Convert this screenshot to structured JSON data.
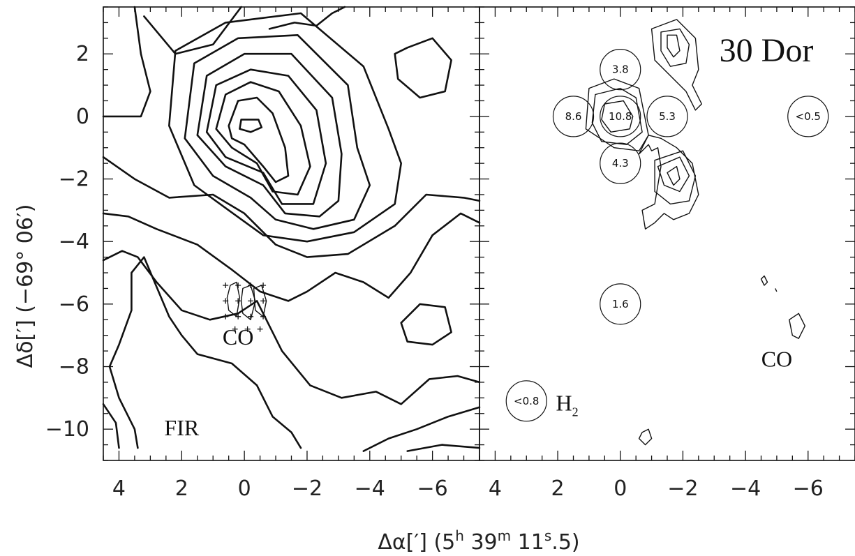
{
  "chart_data": {
    "type": "contour",
    "object_label": "30 Dor",
    "xlabel_parts": {
      "prefix": "Δα[′] (5",
      "h": "h",
      "mid1": " 39",
      "m": "m",
      "mid2": " 11",
      "s": "s",
      "suffix": ".5)"
    },
    "ylabel": "Δδ[′] (−69° 06′)",
    "xlim": [
      4.5,
      -7.5
    ],
    "ylim": [
      -11,
      3.5
    ],
    "x_ticks": [
      4,
      2,
      0,
      -2,
      -4,
      -6
    ],
    "x_tick_labels": [
      "4",
      "2",
      "0",
      "−2",
      "−4",
      "−6"
    ],
    "y_ticks": [
      2,
      0,
      -2,
      -4,
      -6,
      -8,
      -10
    ],
    "y_tick_labels": [
      "2",
      "0",
      "−2",
      "−4",
      "−6",
      "−8",
      "−10"
    ],
    "panels": [
      {
        "name": "left",
        "labels": [
          {
            "text": "FIR",
            "x": 2.0,
            "y": -10.2
          },
          {
            "text": "CO",
            "x": 0.2,
            "y": -7.3
          }
        ]
      },
      {
        "name": "right",
        "labels": [
          {
            "text": "H",
            "sub": "2",
            "x": 1.7,
            "y": -9.4
          },
          {
            "text": "CO",
            "x": -5.0,
            "y": -8.0
          }
        ],
        "pointings": [
          {
            "label": "3.8",
            "x": 0.0,
            "y": 1.5
          },
          {
            "label": "8.6",
            "x": 1.5,
            "y": 0.0
          },
          {
            "label": "10.8",
            "x": 0.0,
            "y": 0.0
          },
          {
            "label": "5.3",
            "x": -1.5,
            "y": 0.0
          },
          {
            "label": "4.3",
            "x": 0.0,
            "y": -1.5
          },
          {
            "label": "<0.5",
            "x": -6.0,
            "y": 0.0
          },
          {
            "label": "1.6",
            "x": 0.0,
            "y": -6.0
          },
          {
            "label": "<0.8",
            "x": 3.0,
            "y": -9.1
          }
        ]
      }
    ]
  }
}
